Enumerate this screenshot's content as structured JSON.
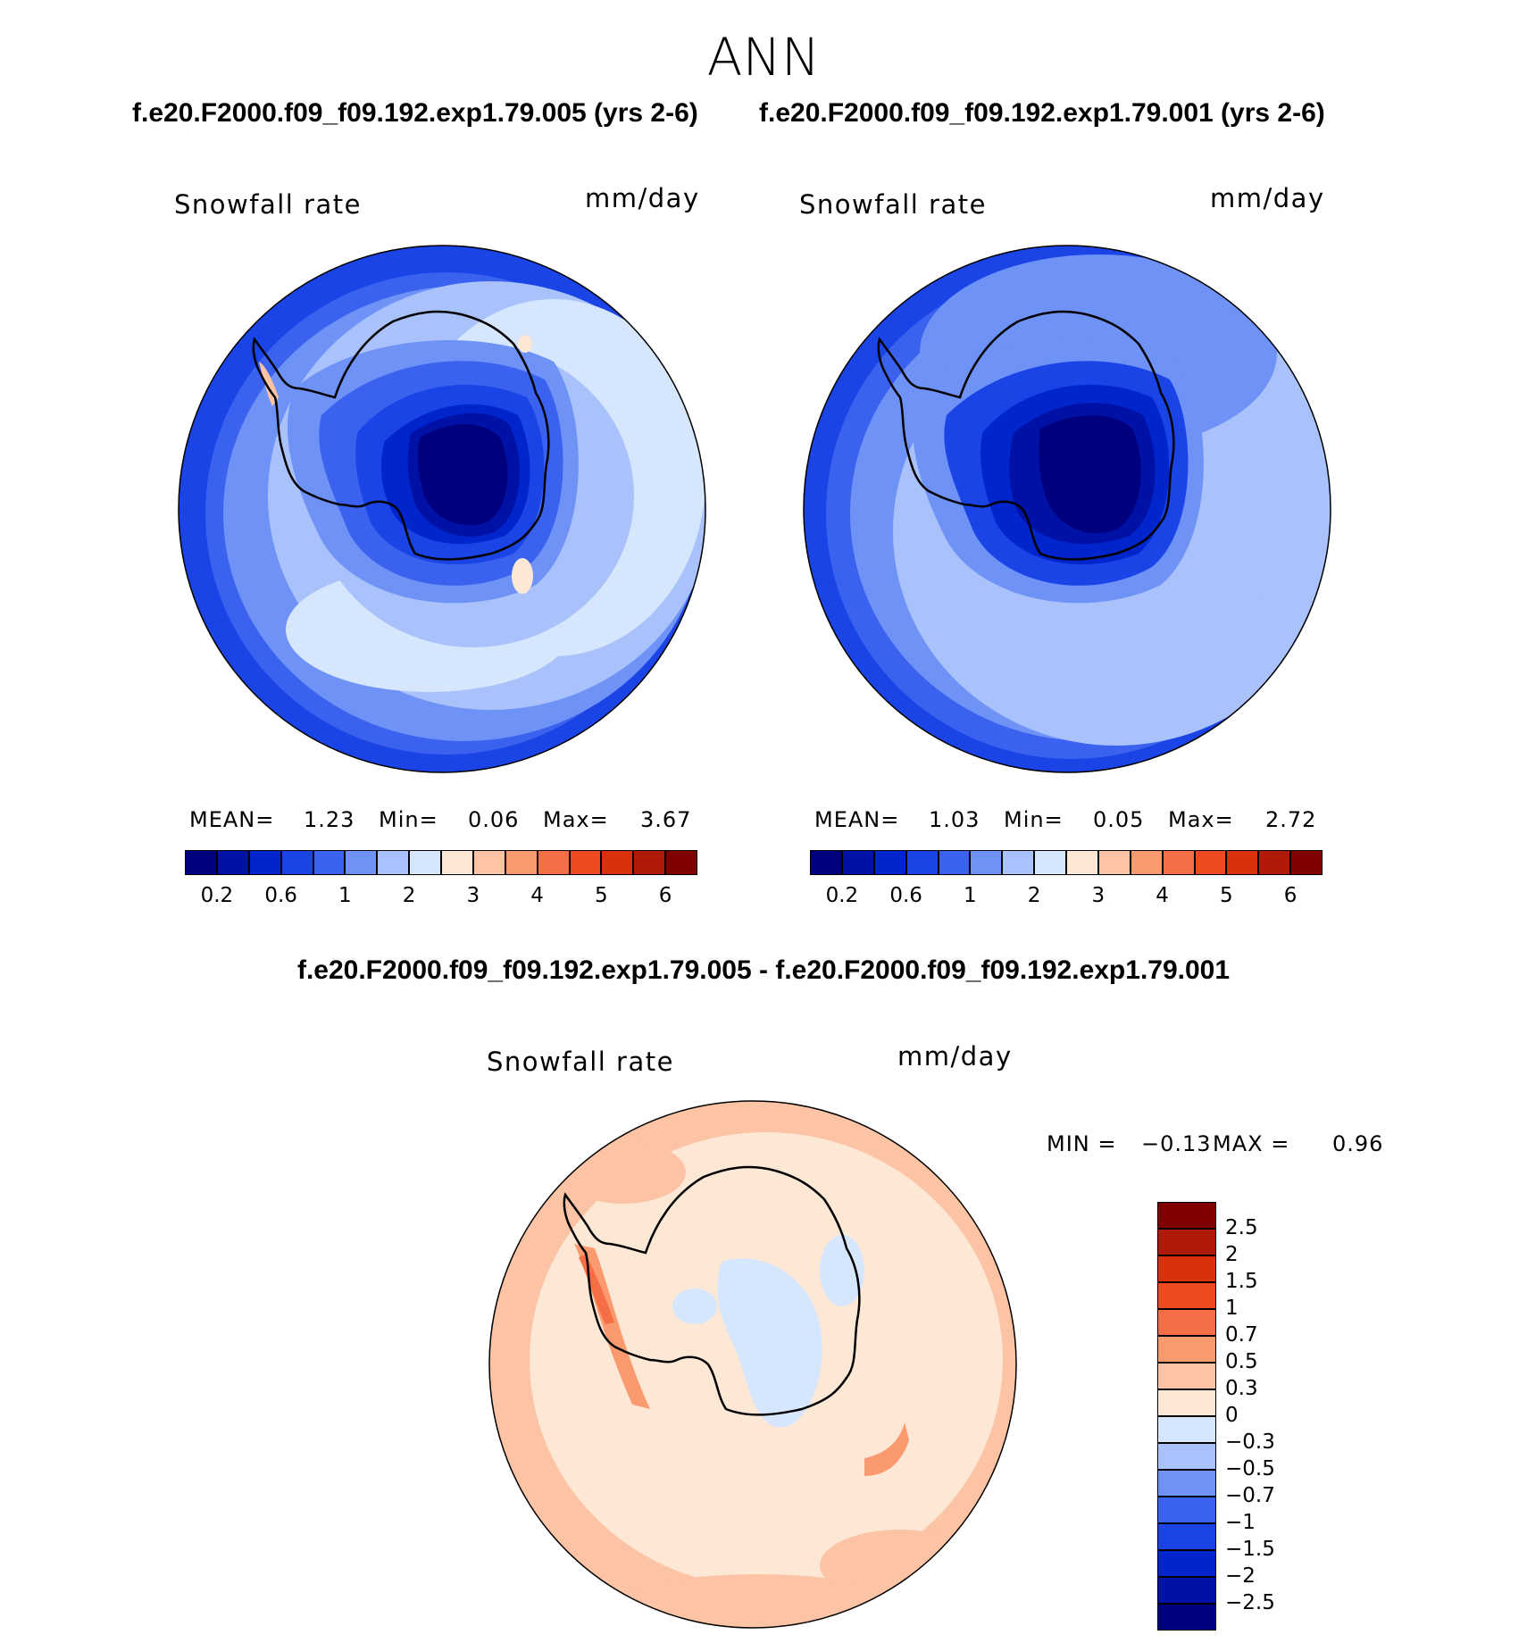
{
  "header": {
    "season": "ANN",
    "left_title": "f.e20.F2000.f09_f09.192.exp1.79.005 (yrs 2-6)",
    "right_title": "f.e20.F2000.f09_f09.192.exp1.79.001 (yrs 2-6)",
    "diff_title": "f.e20.F2000.f09_f09.192.exp1.79.005 - f.e20.F2000.f09_f09.192.exp1.79.001"
  },
  "panels": {
    "left": {
      "variable": "Snowfall rate",
      "units": "mm/day",
      "mean_label": "MEAN=",
      "mean": "1.23",
      "min_label": "Min=",
      "min": "0.06",
      "max_label": "Max=",
      "max": "3.67"
    },
    "right": {
      "variable": "Snowfall rate",
      "units": "mm/day",
      "mean_label": "MEAN=",
      "mean": "1.03",
      "min_label": "Min=",
      "min": "0.05",
      "max_label": "Max=",
      "max": "2.72"
    },
    "diff": {
      "variable": "Snowfall rate",
      "units": "mm/day",
      "min_label": "MIN =",
      "min": "−0.13",
      "max_label": "MAX =",
      "max": "0.96"
    }
  },
  "colorbar_abs": {
    "colors": [
      "#00007f",
      "#0011a5",
      "#0025cc",
      "#1a44e6",
      "#3a62ef",
      "#6f92f7",
      "#a9c2fb",
      "#d5e6fd",
      "#fde8d6",
      "#fcc3a4",
      "#fb9a6e",
      "#f56e45",
      "#ee4a22",
      "#d9300e",
      "#b01a08",
      "#800000"
    ],
    "labels": [
      "0.2",
      "0.6",
      "1",
      "2",
      "3",
      "4",
      "5",
      "6"
    ]
  },
  "colorbar_diff": {
    "colors": [
      "#800000",
      "#b01a08",
      "#d9300e",
      "#ee4a22",
      "#f56e45",
      "#fb9a6e",
      "#fcc3a4",
      "#fde8d6",
      "#d5e6fd",
      "#a9c2fb",
      "#6f92f7",
      "#3a62ef",
      "#1a44e6",
      "#0025cc",
      "#0011a5",
      "#00007f"
    ],
    "labels": [
      "2.5",
      "2",
      "1.5",
      "1",
      "0.7",
      "0.5",
      "0.3",
      "0",
      "−0.3",
      "−0.5",
      "−0.7",
      "−1",
      "−1.5",
      "−2",
      "−2.5"
    ]
  }
}
